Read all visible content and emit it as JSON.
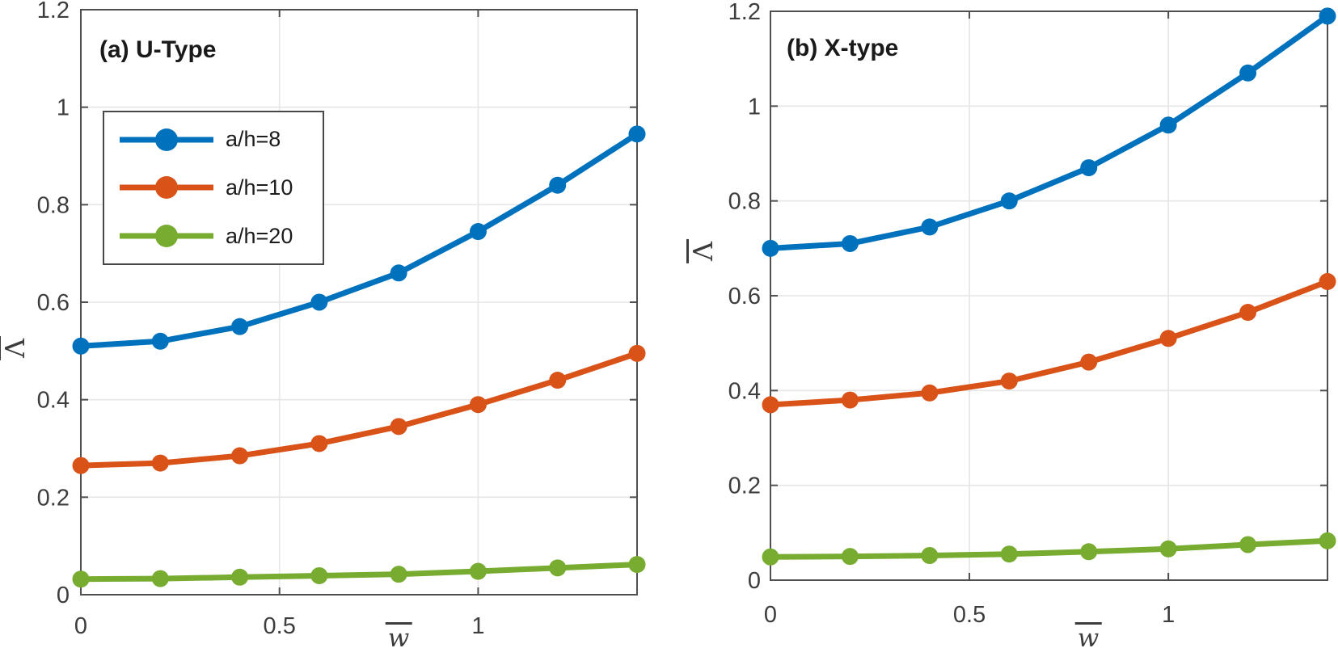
{
  "figure": {
    "background": "#ffffff",
    "styles": {
      "axis_color": "#4f4f4f",
      "grid_color": "#e6e6e6",
      "tick_label_color": "#3d3d3d",
      "title_color": "#1a1a1a",
      "legend_border_color": "#474747",
      "series_blue": "#0072BD",
      "series_orange": "#D95319",
      "series_green": "#77AC30"
    }
  },
  "chart_data": [
    {
      "type": "line",
      "title": "(a) U-Type",
      "xlabel": "w̄",
      "ylabel": "Λ̄",
      "xlim": [
        0,
        1.4
      ],
      "ylim": [
        0,
        1.2
      ],
      "grid": true,
      "xticks": {
        "values": [
          0,
          0.5,
          1
        ],
        "labels": [
          "0",
          "0.5",
          "1"
        ]
      },
      "yticks": {
        "values": [
          0,
          0.2,
          0.4,
          0.6,
          0.8,
          1,
          1.2
        ],
        "labels": [
          "0",
          "0.2",
          "0.4",
          "0.6",
          "0.8",
          "1",
          "1.2"
        ]
      },
      "x": [
        0,
        0.2,
        0.4,
        0.6,
        0.8,
        1,
        1.2,
        1.4
      ],
      "series": [
        {
          "name": "a/h=8",
          "color": "#0072BD",
          "values": [
            0.51,
            0.52,
            0.55,
            0.6,
            0.66,
            0.745,
            0.84,
            0.945
          ]
        },
        {
          "name": "a/h=10",
          "color": "#D95319",
          "values": [
            0.265,
            0.27,
            0.285,
            0.31,
            0.345,
            0.39,
            0.44,
            0.495
          ]
        },
        {
          "name": "a/h=20",
          "color": "#77AC30",
          "values": [
            0.032,
            0.033,
            0.036,
            0.039,
            0.042,
            0.048,
            0.055,
            0.062
          ]
        }
      ],
      "legend": {
        "visible": true,
        "position": "upper-left",
        "labels": [
          "a/h=8",
          "a/h=10",
          "a/h=20"
        ]
      }
    },
    {
      "type": "line",
      "title": "(b) X-type",
      "xlabel": "w̄",
      "ylabel": "Λ̄",
      "xlim": [
        0,
        1.4
      ],
      "ylim": [
        0,
        1.2
      ],
      "grid": true,
      "xticks": {
        "values": [
          0,
          0.5,
          1
        ],
        "labels": [
          "0",
          "0.5",
          "1"
        ]
      },
      "yticks": {
        "values": [
          0,
          0.2,
          0.4,
          0.6,
          0.8,
          1,
          1.2
        ],
        "labels": [
          "0",
          "0.2",
          "0.4",
          "0.6",
          "0.8",
          "1",
          "1.2"
        ]
      },
      "x": [
        0,
        0.2,
        0.4,
        0.6,
        0.8,
        1,
        1.2,
        1.4
      ],
      "series": [
        {
          "name": "a/h=8",
          "color": "#0072BD",
          "values": [
            0.7,
            0.71,
            0.745,
            0.8,
            0.87,
            0.96,
            1.07,
            1.19
          ]
        },
        {
          "name": "a/h=10",
          "color": "#D95319",
          "values": [
            0.37,
            0.38,
            0.395,
            0.42,
            0.46,
            0.51,
            0.565,
            0.63
          ]
        },
        {
          "name": "a/h=20",
          "color": "#77AC30",
          "values": [
            0.049,
            0.05,
            0.052,
            0.055,
            0.06,
            0.066,
            0.075,
            0.083
          ]
        }
      ],
      "legend": {
        "visible": false,
        "position": "",
        "labels": []
      }
    }
  ]
}
